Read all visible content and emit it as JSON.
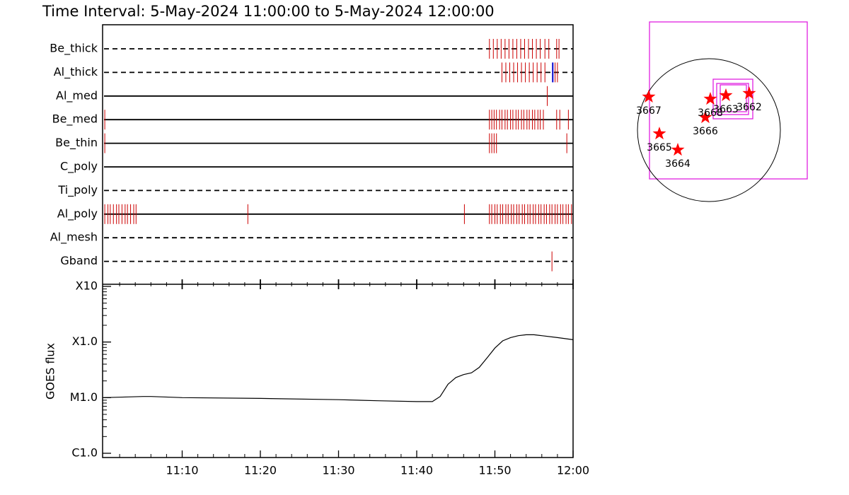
{
  "chart_data": [
    {
      "type": "timeline",
      "title": "Time Interval:  5-May-2024 11:00:00 to  5-May-2024 12:00:00",
      "xlim": [
        0,
        60
      ],
      "event_color": "#cc0000",
      "highlight_color": "#0000cc",
      "series": [
        {
          "name": "Be_thick",
          "style": "dashed",
          "events": [
            49.3,
            49.8,
            50.3,
            50.8,
            51.3,
            51.8,
            52.3,
            52.8,
            53.3,
            53.8,
            54.3,
            54.8,
            55.3,
            55.8,
            56.4,
            56.9,
            57.9,
            58.2
          ]
        },
        {
          "name": "Al_thick",
          "style": "dashed",
          "events": [
            50.9,
            51.4,
            51.9,
            52.4,
            52.9,
            53.4,
            53.9,
            54.4,
            54.9,
            55.4,
            55.9,
            56.4,
            57.7,
            58.0
          ],
          "highlight_events": [
            57.4
          ]
        },
        {
          "name": "Al_med",
          "style": "solid",
          "events": [
            56.7
          ]
        },
        {
          "name": "Be_med",
          "style": "solid",
          "events": [
            0.1,
            49.3,
            49.6,
            49.9,
            50.2,
            50.6,
            50.9,
            51.3,
            51.6,
            52.0,
            52.3,
            52.7,
            53.0,
            53.4,
            53.7,
            54.1,
            54.4,
            54.8,
            55.1,
            55.5,
            55.8,
            56.2,
            57.9,
            58.3,
            59.4
          ]
        },
        {
          "name": "Be_thin",
          "style": "solid",
          "events": [
            0.1,
            49.3,
            49.6,
            49.9,
            50.2,
            59.2
          ]
        },
        {
          "name": "C_poly",
          "style": "solid",
          "events": []
        },
        {
          "name": "Ti_poly",
          "style": "dashed",
          "events": []
        },
        {
          "name": "Al_poly",
          "style": "solid",
          "events": [
            0.1,
            0.5,
            0.8,
            1.2,
            1.6,
            1.9,
            2.3,
            2.7,
            3.0,
            3.4,
            3.8,
            4.1,
            18.4,
            46.1,
            49.3,
            49.6,
            50.0,
            50.3,
            50.7,
            51.0,
            51.4,
            51.7,
            52.1,
            52.4,
            52.8,
            53.1,
            53.5,
            53.8,
            54.2,
            54.5,
            54.9,
            55.2,
            55.6,
            55.9,
            56.3,
            56.6,
            57.0,
            57.3,
            57.7,
            58.0,
            58.4,
            58.7,
            59.1,
            59.4,
            59.8
          ]
        },
        {
          "name": "Al_mesh",
          "style": "dashed",
          "events": []
        },
        {
          "name": "Gband",
          "style": "dashed",
          "events": [
            57.3
          ]
        }
      ]
    },
    {
      "type": "line",
      "ylabel": "GOES flux",
      "log_y": true,
      "color": "#000000",
      "xlim": [
        0,
        60
      ],
      "xticks": [
        {
          "value": 10,
          "label": "11:10"
        },
        {
          "value": 20,
          "label": "11:20"
        },
        {
          "value": 30,
          "label": "11:30"
        },
        {
          "value": 40,
          "label": "11:40"
        },
        {
          "value": 50,
          "label": "11:50"
        },
        {
          "value": 60,
          "label": "12:00"
        }
      ],
      "ylim": [
        1e-06,
        0.001
      ],
      "yticks": [
        {
          "value": 1e-06,
          "label": "C1.0"
        },
        {
          "value": 1e-05,
          "label": "M1.0"
        },
        {
          "value": 0.0001,
          "label": "X1.0"
        },
        {
          "value": 0.001,
          "label": "X10"
        }
      ],
      "x": [
        0,
        5,
        6,
        10,
        20,
        30,
        35,
        40,
        41,
        42,
        43,
        44,
        45,
        46,
        47,
        48,
        49,
        50,
        51,
        52,
        53,
        54,
        55,
        56,
        58,
        60
      ],
      "values": [
        1e-05,
        1.05e-05,
        1.05e-05,
        1e-05,
        9.7e-06,
        9.2e-06,
        8.8e-06,
        8.5e-06,
        8.5e-06,
        8.5e-06,
        1.05e-05,
        1.74e-05,
        2.3e-05,
        2.6e-05,
        2.8e-05,
        3.5e-05,
        5.2e-05,
        7.8e-05,
        0.000105,
        0.00012,
        0.00013,
        0.000135,
        0.000135,
        0.00013,
        0.00012,
        0.00011
      ]
    },
    {
      "type": "scatter",
      "color": "#ff0000",
      "categories": [
        "3667",
        "3665",
        "3664",
        "3666",
        "3668",
        "3663",
        "3662"
      ],
      "x": [
        -808,
        -665,
        -418,
        -48,
        19,
        228,
        541
      ],
      "values": [
        447,
        -48,
        -266,
        171,
        418,
        466,
        494
      ]
    }
  ]
}
